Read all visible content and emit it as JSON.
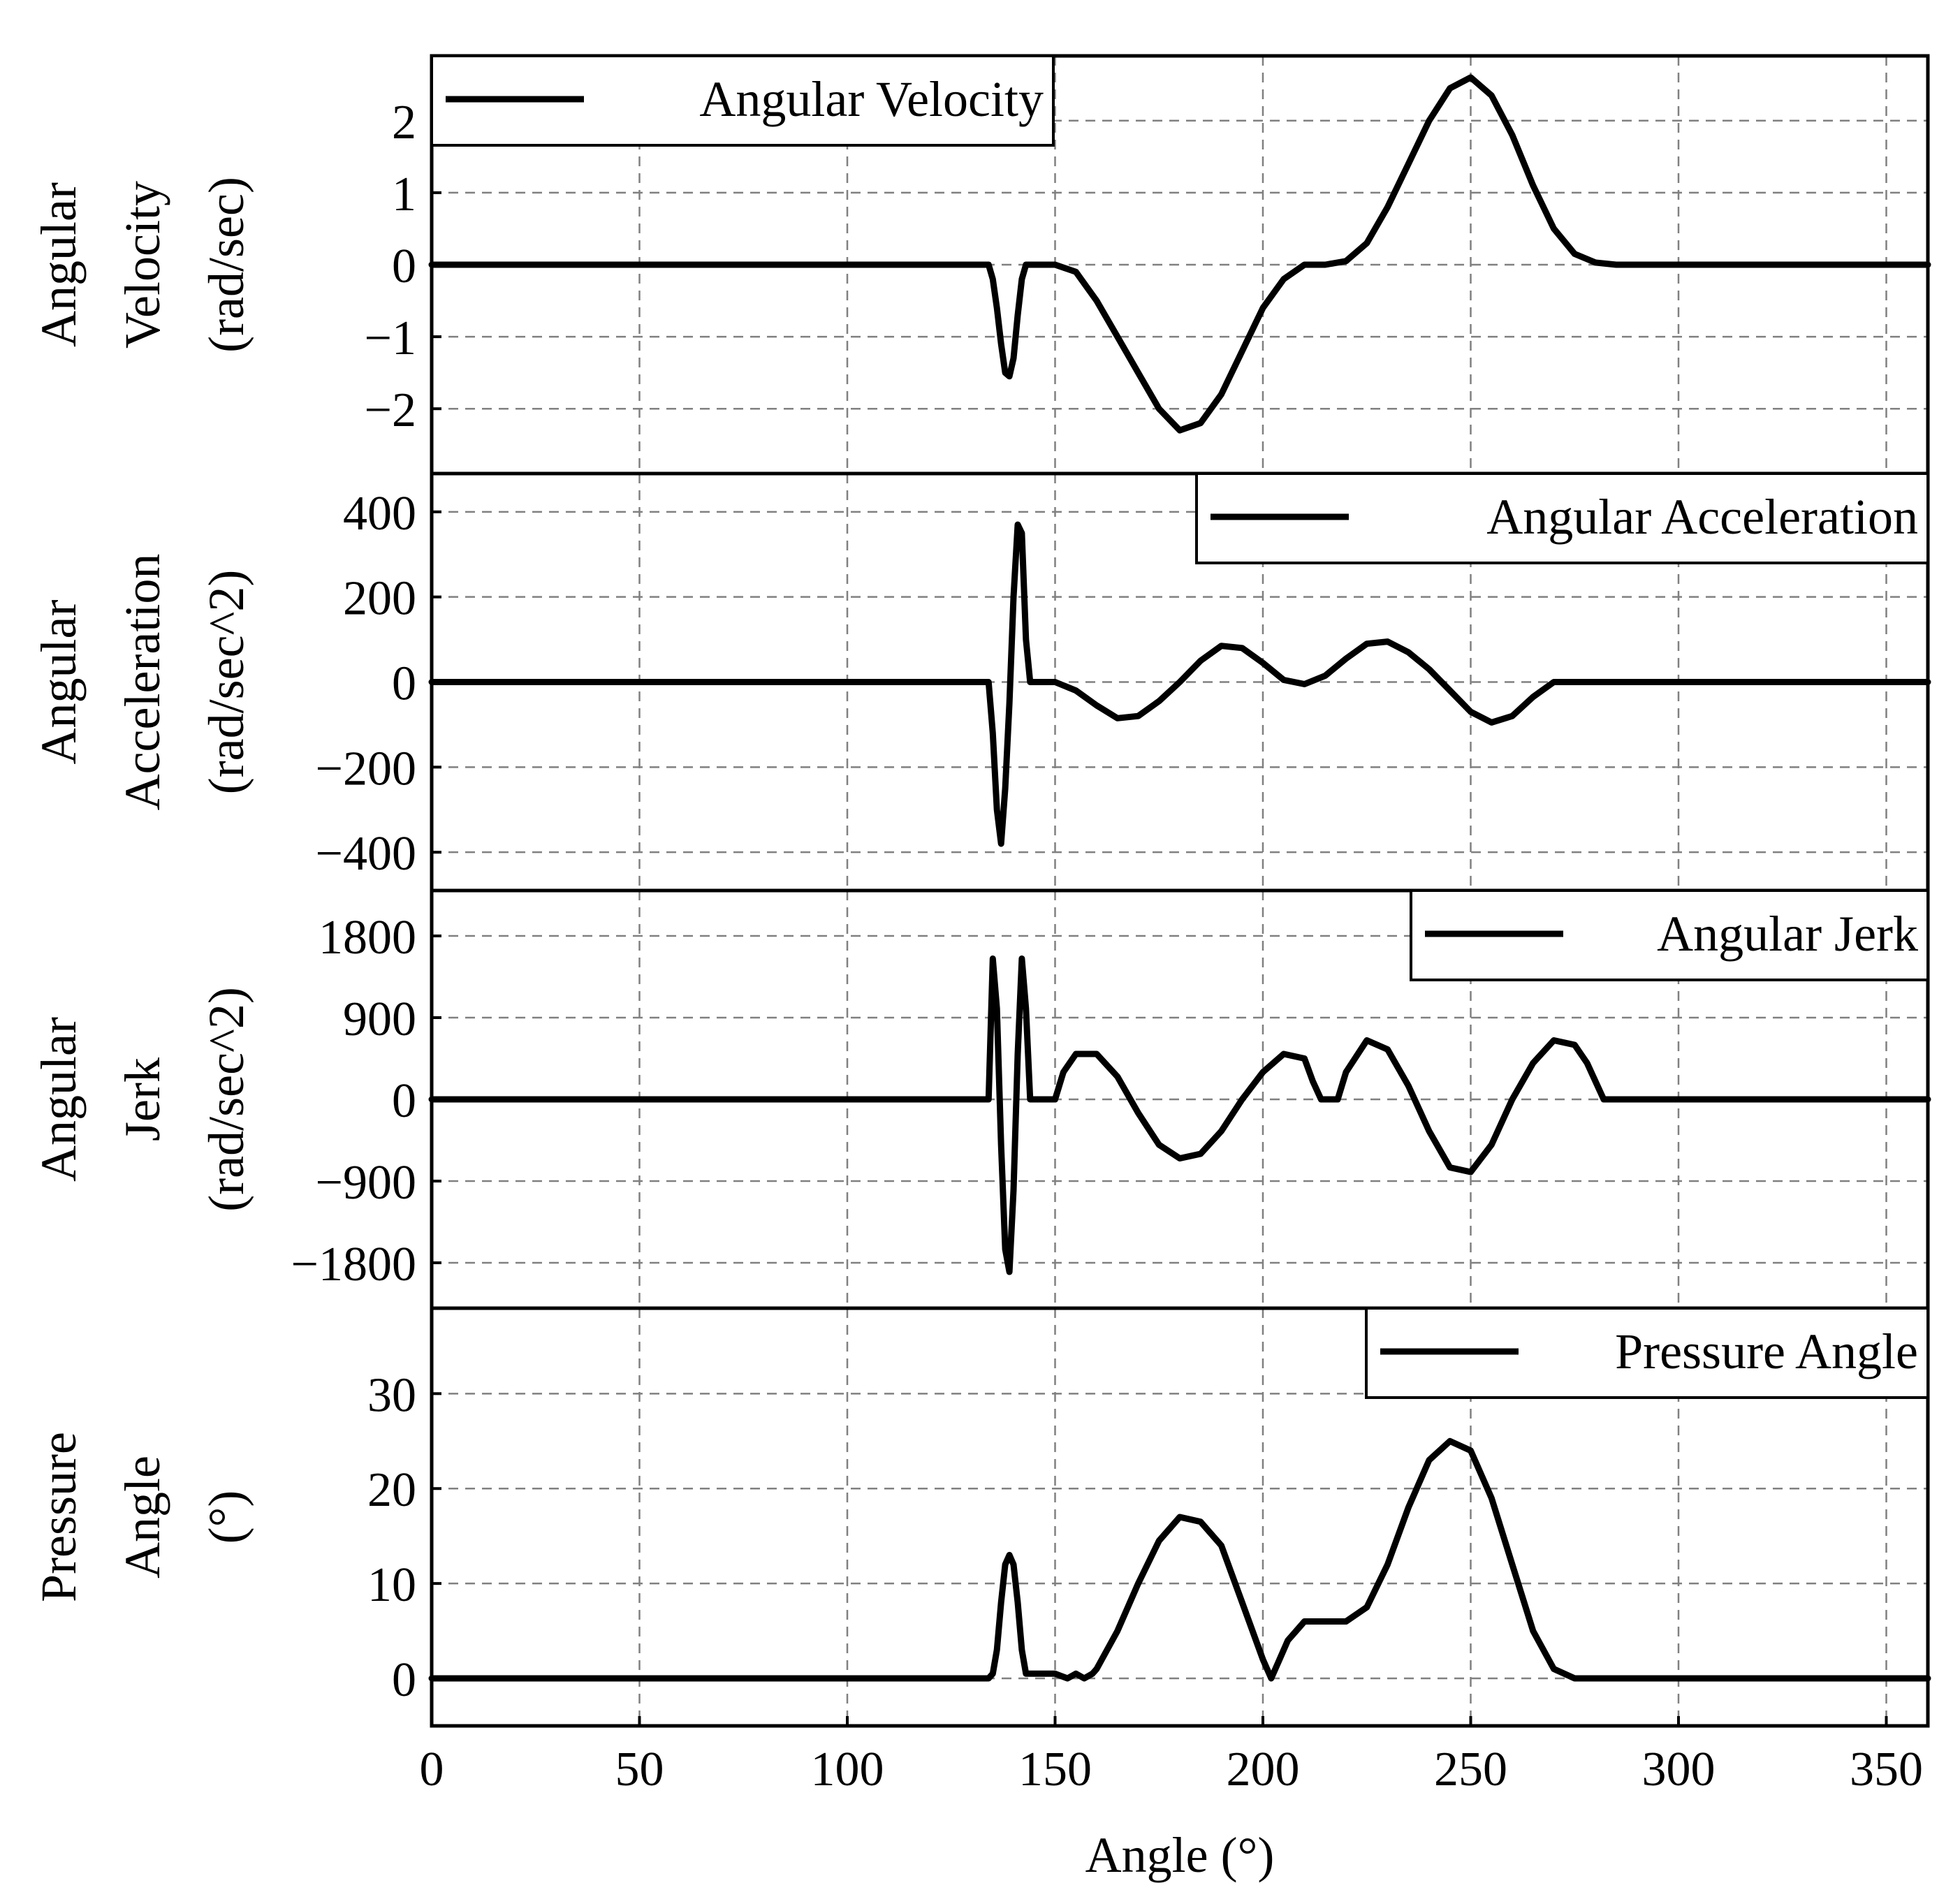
{
  "chart_data": [
    {
      "type": "line",
      "ylabel_lines": [
        "Angular",
        "Velocity",
        "(rad/sec)"
      ],
      "legend": "Angular Velocity",
      "legend_position": "top-left",
      "xlim": [
        0,
        360
      ],
      "ylim": [
        -2.9,
        2.9
      ],
      "yticks": [
        -2,
        -1,
        0,
        1,
        2
      ],
      "ytick_labels": [
        "−2",
        "−1",
        "0",
        "1",
        "2"
      ],
      "grid": true,
      "series": [
        {
          "name": "Angular Velocity",
          "x": [
            0,
            134,
            135,
            136,
            137,
            138,
            139,
            140,
            141,
            142,
            143,
            144,
            150,
            155,
            160,
            165,
            170,
            175,
            180,
            185,
            190,
            195,
            200,
            205,
            210,
            215,
            220,
            225,
            230,
            235,
            240,
            245,
            250,
            255,
            260,
            265,
            270,
            275,
            280,
            285,
            360
          ],
          "y": [
            0,
            0,
            -0.2,
            -0.6,
            -1.1,
            -1.5,
            -1.55,
            -1.3,
            -0.7,
            -0.2,
            0,
            0,
            0,
            -0.1,
            -0.5,
            -1.0,
            -1.5,
            -2.0,
            -2.3,
            -2.2,
            -1.8,
            -1.2,
            -0.6,
            -0.2,
            0,
            0,
            0.05,
            0.3,
            0.8,
            1.4,
            2.0,
            2.45,
            2.6,
            2.35,
            1.8,
            1.1,
            0.5,
            0.15,
            0.03,
            0,
            0
          ]
        }
      ]
    },
    {
      "type": "line",
      "ylabel_lines": [
        "Angular",
        "Acceleration",
        "(rad/sec^2)"
      ],
      "legend": "Angular Acceleration",
      "legend_position": "top-right",
      "xlim": [
        0,
        360
      ],
      "ylim": [
        -490,
        490
      ],
      "yticks": [
        -400,
        -200,
        0,
        200,
        400
      ],
      "ytick_labels": [
        "−400",
        "−200",
        "0",
        "200",
        "400"
      ],
      "grid": true,
      "series": [
        {
          "name": "Angular Acceleration",
          "x": [
            0,
            134,
            135,
            136,
            137,
            138,
            139,
            140,
            141,
            142,
            143,
            144,
            150,
            155,
            160,
            165,
            170,
            175,
            180,
            185,
            190,
            195,
            200,
            205,
            210,
            215,
            220,
            225,
            230,
            235,
            240,
            245,
            250,
            255,
            260,
            265,
            270,
            275,
            280,
            285,
            360
          ],
          "y": [
            0,
            0,
            -120,
            -300,
            -380,
            -250,
            -50,
            200,
            370,
            350,
            100,
            0,
            0,
            -20,
            -55,
            -85,
            -80,
            -45,
            0,
            50,
            85,
            80,
            45,
            5,
            -5,
            15,
            55,
            90,
            95,
            70,
            30,
            -20,
            -70,
            -95,
            -80,
            -35,
            0,
            0,
            0,
            0,
            0
          ]
        }
      ]
    },
    {
      "type": "line",
      "ylabel_lines": [
        "Angular",
        "Jerk",
        "(rad/sec^2)"
      ],
      "legend": "Angular Jerk",
      "legend_position": "top-right",
      "xlim": [
        0,
        360
      ],
      "ylim": [
        -2300,
        2300
      ],
      "yticks": [
        -1800,
        -900,
        0,
        900,
        1800
      ],
      "ytick_labels": [
        "−1800",
        "−900",
        "0",
        "900",
        "1800"
      ],
      "grid": true,
      "series": [
        {
          "name": "Angular Jerk",
          "x": [
            0,
            134,
            135,
            136,
            137,
            138,
            139,
            140,
            141,
            142,
            143,
            144,
            145,
            150,
            152,
            155,
            160,
            165,
            170,
            175,
            180,
            185,
            190,
            195,
            200,
            205,
            210,
            212,
            214,
            216,
            218,
            220,
            225,
            230,
            235,
            240,
            245,
            250,
            255,
            260,
            265,
            270,
            275,
            278,
            280,
            282,
            285,
            360
          ],
          "y": [
            0,
            0,
            1550,
            1000,
            -500,
            -1650,
            -1900,
            -1000,
            500,
            1550,
            1000,
            0,
            0,
            0,
            300,
            500,
            500,
            250,
            -150,
            -500,
            -650,
            -600,
            -350,
            0,
            300,
            500,
            450,
            200,
            0,
            0,
            0,
            300,
            650,
            550,
            150,
            -350,
            -750,
            -800,
            -500,
            0,
            400,
            650,
            600,
            400,
            200,
            0,
            0,
            0
          ]
        }
      ]
    },
    {
      "type": "line",
      "ylabel_lines": [
        "Pressure",
        "Angle",
        "(°)"
      ],
      "legend": "Pressure Angle",
      "legend_position": "top-right",
      "xlabel": "Angle (°)",
      "xlim": [
        0,
        360
      ],
      "xticks": [
        0,
        50,
        100,
        150,
        200,
        250,
        300,
        350
      ],
      "xtick_labels": [
        "0",
        "50",
        "100",
        "150",
        "200",
        "250",
        "300",
        "350"
      ],
      "ylim": [
        -5,
        39
      ],
      "yticks": [
        0,
        10,
        20,
        30
      ],
      "ytick_labels": [
        "0",
        "10",
        "20",
        "30"
      ],
      "grid": true,
      "series": [
        {
          "name": "Pressure Angle",
          "x": [
            0,
            134,
            135,
            136,
            137,
            138,
            139,
            140,
            141,
            142,
            143,
            144,
            145,
            150,
            153,
            155,
            157,
            159,
            160,
            165,
            170,
            175,
            180,
            185,
            190,
            195,
            200,
            202,
            204,
            206,
            208,
            210,
            215,
            220,
            225,
            230,
            235,
            240,
            245,
            250,
            255,
            260,
            265,
            270,
            275,
            280,
            285,
            360
          ],
          "y": [
            0,
            0,
            0.5,
            3,
            8,
            12,
            13,
            12,
            8,
            3,
            0.5,
            0.5,
            0.5,
            0.5,
            0,
            0.5,
            0,
            0.5,
            1,
            5,
            10,
            14.5,
            17,
            16.5,
            14,
            8,
            2,
            0,
            2,
            4,
            5,
            6,
            6,
            6,
            7.5,
            12,
            18,
            23,
            25,
            24,
            19,
            12,
            5,
            1,
            0,
            0,
            0,
            0
          ]
        }
      ]
    }
  ]
}
